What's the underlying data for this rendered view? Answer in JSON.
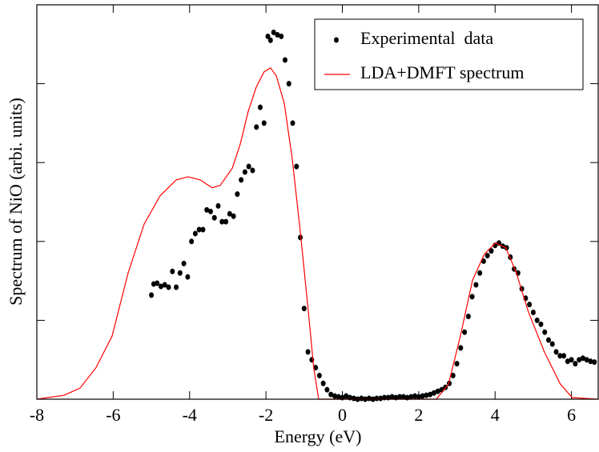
{
  "chart_data": {
    "type": "line",
    "xlabel": "Energy (eV)",
    "ylabel": "Spectrum of NiO  (arbi. units)",
    "xlim": [
      -8,
      6.7
    ],
    "ylim": [
      0,
      5
    ],
    "xticks": [
      -8,
      -6,
      -4,
      -2,
      0,
      2,
      4,
      6
    ],
    "yticks": [
      1,
      2,
      3,
      4
    ],
    "legend": "upper right",
    "series": [
      {
        "name": "Experimental  data",
        "type": "scatter",
        "color": "#000000",
        "x": [
          -5.0,
          -4.94,
          -4.85,
          -4.75,
          -4.65,
          -4.55,
          -4.45,
          -4.35,
          -4.25,
          -4.15,
          -4.05,
          -3.95,
          -3.85,
          -3.75,
          -3.65,
          -3.55,
          -3.45,
          -3.35,
          -3.25,
          -3.15,
          -3.05,
          -2.95,
          -2.85,
          -2.75,
          -2.65,
          -2.55,
          -2.45,
          -2.35,
          -2.25,
          -2.15,
          -2.05,
          -1.95,
          -1.88,
          -1.8,
          -1.7,
          -1.6,
          -1.5,
          -1.4,
          -1.3,
          -1.2,
          -1.1,
          -1.0,
          -0.9,
          -0.8,
          -0.7,
          -0.6,
          -0.5,
          -0.4,
          -0.3,
          -0.2,
          -0.1,
          0.0,
          0.1,
          0.2,
          0.3,
          0.4,
          0.5,
          0.6,
          0.7,
          0.8,
          0.9,
          1.0,
          1.1,
          1.2,
          1.3,
          1.4,
          1.5,
          1.6,
          1.7,
          1.8,
          1.9,
          2.0,
          2.1,
          2.2,
          2.3,
          2.4,
          2.5,
          2.6,
          2.7,
          2.8,
          2.9,
          3.0,
          3.1,
          3.2,
          3.3,
          3.4,
          3.5,
          3.6,
          3.7,
          3.8,
          3.9,
          4.0,
          4.1,
          4.2,
          4.3,
          4.4,
          4.5,
          4.6,
          4.7,
          4.8,
          4.9,
          5.0,
          5.1,
          5.2,
          5.3,
          5.4,
          5.5,
          5.6,
          5.7,
          5.8,
          5.9,
          6.0,
          6.1,
          6.2,
          6.3,
          6.4,
          6.5,
          6.6
        ],
        "values": [
          1.32,
          1.46,
          1.47,
          1.43,
          1.45,
          1.42,
          1.62,
          1.42,
          1.6,
          1.72,
          1.55,
          2.0,
          2.1,
          2.15,
          2.15,
          2.4,
          2.38,
          2.3,
          2.45,
          2.25,
          2.25,
          2.35,
          2.32,
          2.6,
          2.78,
          2.88,
          2.95,
          2.9,
          3.45,
          3.7,
          3.5,
          4.6,
          4.55,
          4.65,
          4.62,
          4.6,
          4.3,
          4.0,
          3.5,
          2.95,
          2.05,
          1.15,
          0.6,
          0.5,
          0.4,
          0.3,
          0.2,
          0.12,
          0.06,
          0.04,
          0.03,
          0.02,
          0.04,
          0.02,
          0.01,
          0.0,
          0.01,
          0.0,
          0.01,
          0.0,
          0.01,
          0.01,
          0.02,
          0.02,
          0.03,
          0.02,
          0.03,
          0.03,
          0.02,
          0.03,
          0.04,
          0.03,
          0.04,
          0.05,
          0.06,
          0.08,
          0.1,
          0.12,
          0.15,
          0.2,
          0.3,
          0.45,
          0.65,
          0.85,
          1.05,
          1.3,
          1.45,
          1.6,
          1.75,
          1.82,
          1.88,
          1.95,
          1.98,
          1.94,
          1.92,
          1.8,
          1.65,
          1.6,
          1.4,
          1.28,
          1.2,
          1.1,
          1.0,
          0.95,
          0.85,
          0.75,
          0.7,
          0.6,
          0.55,
          0.55,
          0.48,
          0.5,
          0.45,
          0.5,
          0.52,
          0.5,
          0.48,
          0.47
        ]
      },
      {
        "name": "LDA+DMFT spectrum",
        "type": "line",
        "color": "#ff0000",
        "x": [
          -8,
          -7.29,
          -6.87,
          -6.45,
          -6.03,
          -5.61,
          -5.19,
          -4.77,
          -4.35,
          -4.04,
          -3.72,
          -3.41,
          -3.2,
          -2.88,
          -2.67,
          -2.47,
          -2.26,
          -2.05,
          -1.88,
          -1.73,
          -1.52,
          -1.31,
          -1.1,
          -0.89,
          -0.75,
          -0.62,
          1,
          2.46,
          2.78,
          3.09,
          3.41,
          3.72,
          4.01,
          4.28,
          4.55,
          4.87,
          5.29,
          5.71,
          6.02,
          6.7
        ],
        "values": [
          0,
          0.05,
          0.14,
          0.4,
          0.8,
          1.6,
          2.22,
          2.58,
          2.78,
          2.82,
          2.78,
          2.68,
          2.71,
          2.93,
          3.24,
          3.64,
          3.95,
          4.15,
          4.2,
          4.1,
          3.75,
          3.04,
          2.12,
          1.11,
          0.4,
          0,
          0,
          0,
          0.19,
          0.8,
          1.51,
          1.84,
          1.98,
          1.92,
          1.61,
          1.11,
          0.6,
          0.19,
          0.02,
          0
        ]
      }
    ]
  }
}
